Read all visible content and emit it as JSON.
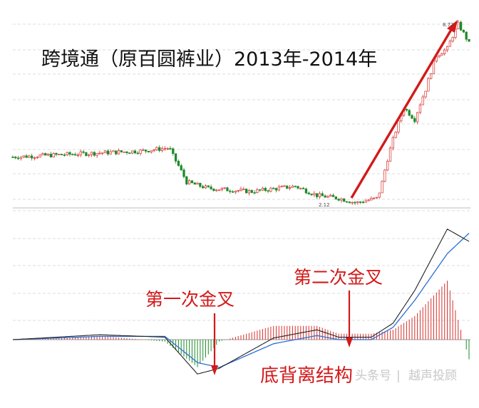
{
  "title": "跨境通（原百圆裤业）2013年-2014年",
  "annotations": {
    "first_cross": "第一次金叉",
    "second_cross": "第二次金叉",
    "bottom_divergence": "底背离结构"
  },
  "labels": {
    "low_price": "2.12",
    "high_price": "8.72"
  },
  "watermark": {
    "source": "头条号",
    "separator": "|",
    "author": "越声投顾"
  },
  "colors": {
    "up": "#d4302c",
    "down": "#1e8a2a",
    "annotation": "#d21a1a",
    "dif_line": "#222222",
    "dea_line": "#2a6fd6",
    "grid": "#dcdcdc"
  },
  "chart_data": [
    {
      "type": "candlestick",
      "title": "跨境通（原百圆裤业）2013年-2014年",
      "price_points": [
        {
          "t": 0,
          "close": 3.05
        },
        {
          "t": 20,
          "close": 3.1
        },
        {
          "t": 40,
          "close": 3.15
        },
        {
          "t": 60,
          "close": 3.2
        },
        {
          "t": 72,
          "close": 3.28
        },
        {
          "t": 74,
          "close": 3.05
        },
        {
          "t": 80,
          "close": 2.5
        },
        {
          "t": 90,
          "close": 2.38
        },
        {
          "t": 110,
          "close": 2.32
        },
        {
          "t": 130,
          "close": 2.42
        },
        {
          "t": 140,
          "close": 2.25
        },
        {
          "t": 150,
          "close": 2.2
        },
        {
          "t": 158,
          "close": 2.12
        },
        {
          "t": 165,
          "close": 2.18
        },
        {
          "t": 168,
          "close": 2.2
        },
        {
          "t": 170,
          "close": 2.5
        },
        {
          "t": 175,
          "close": 3.5
        },
        {
          "t": 180,
          "close": 4.5
        },
        {
          "t": 185,
          "close": 4.1
        },
        {
          "t": 190,
          "close": 5.2
        },
        {
          "t": 195,
          "close": 6.8
        },
        {
          "t": 200,
          "close": 7.2
        },
        {
          "t": 205,
          "close": 8.72
        },
        {
          "t": 210,
          "close": 7.5
        }
      ],
      "low_label": "2.12",
      "high_label": "8.72",
      "trend_arrow": {
        "from_t": 158,
        "from_price": 2.12,
        "to_t": 205,
        "to_price": 8.72
      }
    },
    {
      "type": "macd",
      "dif": [
        {
          "t": 0,
          "v": 0.0
        },
        {
          "t": 40,
          "v": 0.06
        },
        {
          "t": 70,
          "v": 0.03
        },
        {
          "t": 85,
          "v": -0.42
        },
        {
          "t": 95,
          "v": -0.35
        },
        {
          "t": 120,
          "v": 0.02
        },
        {
          "t": 140,
          "v": 0.12
        },
        {
          "t": 150,
          "v": 0.03
        },
        {
          "t": 165,
          "v": 0.03
        },
        {
          "t": 175,
          "v": 0.2
        },
        {
          "t": 185,
          "v": 0.6
        },
        {
          "t": 200,
          "v": 1.35
        },
        {
          "t": 210,
          "v": 1.2
        }
      ],
      "dea": [
        {
          "t": 0,
          "v": 0.0
        },
        {
          "t": 40,
          "v": 0.04
        },
        {
          "t": 70,
          "v": 0.04
        },
        {
          "t": 85,
          "v": -0.28
        },
        {
          "t": 95,
          "v": -0.34
        },
        {
          "t": 120,
          "v": -0.05
        },
        {
          "t": 140,
          "v": 0.05
        },
        {
          "t": 150,
          "v": 0.0
        },
        {
          "t": 165,
          "v": 0.0
        },
        {
          "t": 175,
          "v": 0.15
        },
        {
          "t": 185,
          "v": 0.48
        },
        {
          "t": 200,
          "v": 1.05
        },
        {
          "t": 210,
          "v": 1.3
        }
      ],
      "first_cross_t": 96,
      "second_cross_t": 151
    }
  ]
}
